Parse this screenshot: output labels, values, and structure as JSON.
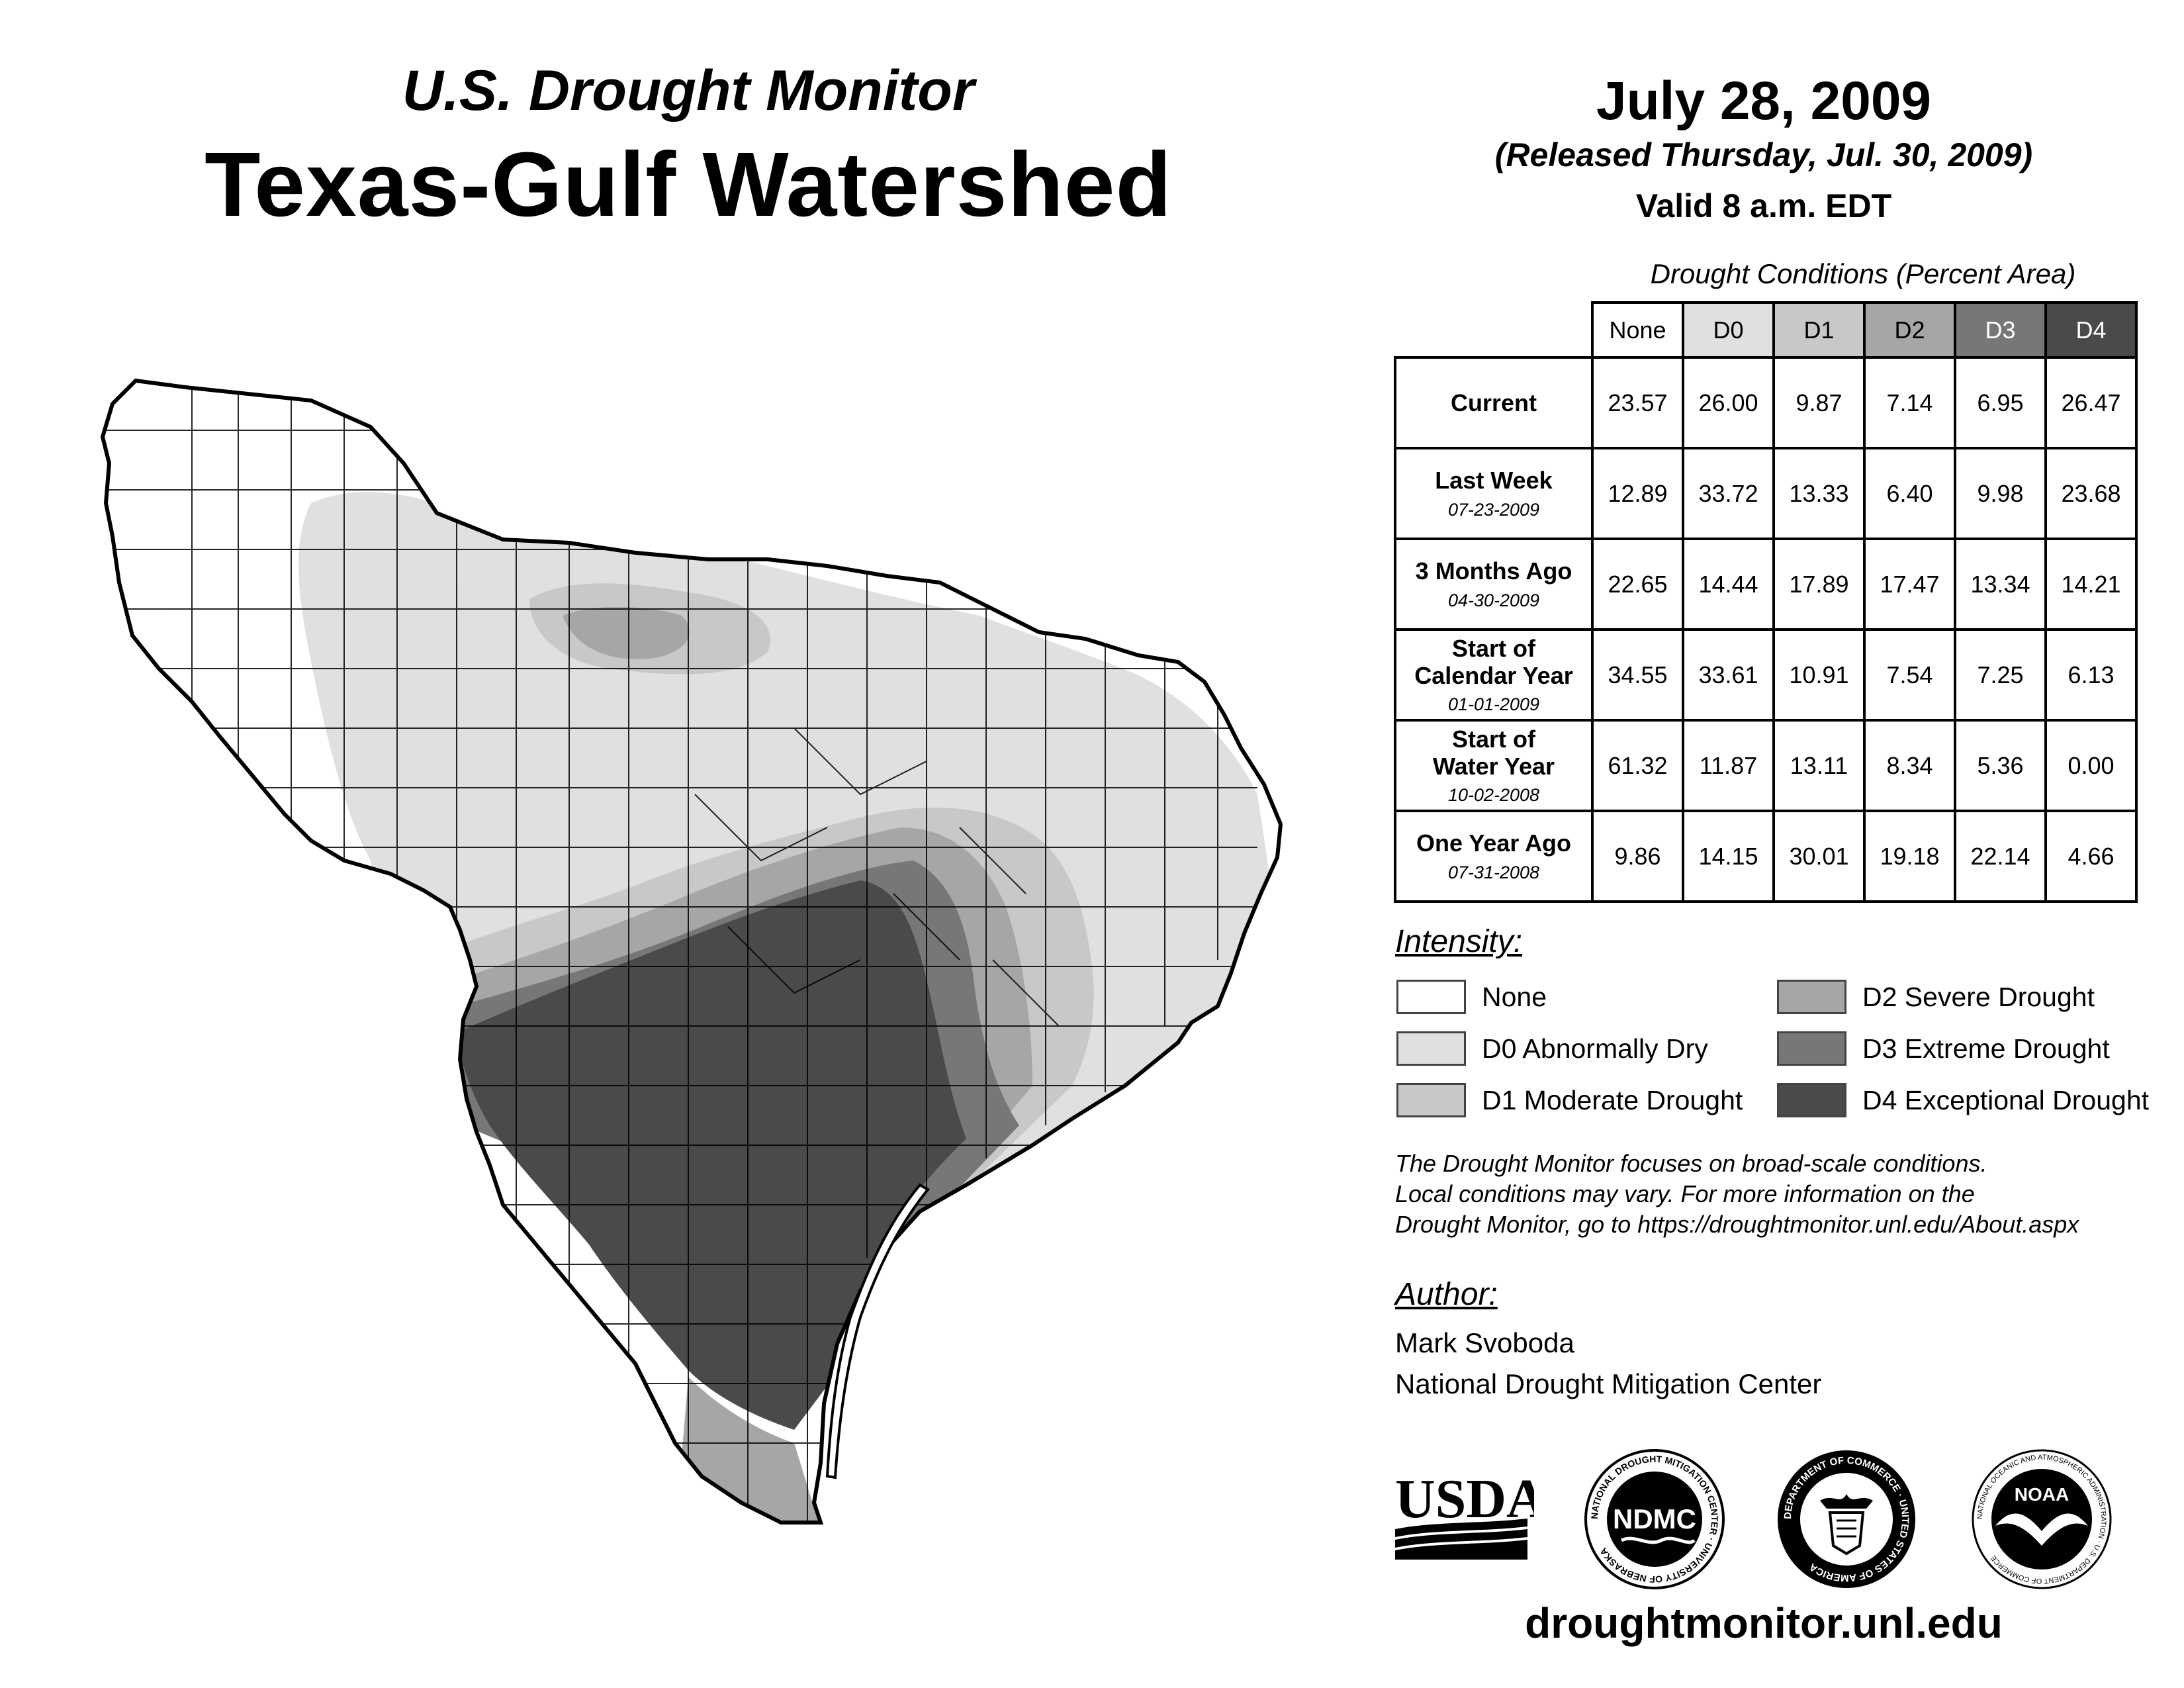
{
  "header": {
    "subtitle": "U.S. Drought Monitor",
    "title": "Texas-Gulf Watershed",
    "date": "July 28, 2009",
    "released": "(Released Thursday, Jul. 30, 2009)",
    "valid": "Valid 8 a.m. EDT"
  },
  "table": {
    "title": "Drought Conditions (Percent Area)",
    "columns": [
      "None",
      "D0",
      "D1",
      "D2",
      "D3",
      "D4"
    ],
    "column_colors": [
      "#ffffff",
      "#e0e0e0",
      "#c8c8c8",
      "#a6a6a6",
      "#777777",
      "#4a4a4a"
    ],
    "rows": [
      {
        "label": "Current",
        "date": "",
        "values": [
          "23.57",
          "26.00",
          "9.87",
          "7.14",
          "6.95",
          "26.47"
        ]
      },
      {
        "label": "Last Week",
        "date": "07-23-2009",
        "values": [
          "12.89",
          "33.72",
          "13.33",
          "6.40",
          "9.98",
          "23.68"
        ]
      },
      {
        "label": "3 Months Ago",
        "date": "04-30-2009",
        "values": [
          "22.65",
          "14.44",
          "17.89",
          "17.47",
          "13.34",
          "14.21"
        ]
      },
      {
        "label": "Start of Calendar Year",
        "date": "01-01-2009",
        "values": [
          "34.55",
          "33.61",
          "10.91",
          "7.54",
          "7.25",
          "6.13"
        ]
      },
      {
        "label": "Start of Water Year",
        "date": "10-02-2008",
        "values": [
          "61.32",
          "11.87",
          "13.11",
          "8.34",
          "5.36",
          "0.00"
        ]
      },
      {
        "label": "One Year Ago",
        "date": "07-31-2008",
        "values": [
          "9.86",
          "14.15",
          "30.01",
          "19.18",
          "22.14",
          "4.66"
        ]
      }
    ]
  },
  "legend": {
    "title": "Intensity:",
    "items": [
      {
        "label": "None",
        "color": "#ffffff"
      },
      {
        "label": "D0 Abnormally Dry",
        "color": "#e0e0e0"
      },
      {
        "label": "D1 Moderate Drought",
        "color": "#c8c8c8"
      },
      {
        "label": "D2 Severe Drought",
        "color": "#a6a6a6"
      },
      {
        "label": "D3 Extreme Drought",
        "color": "#777777"
      },
      {
        "label": "D4 Exceptional Drought",
        "color": "#4a4a4a"
      }
    ]
  },
  "note": [
    "The Drought Monitor focuses on broad-scale conditions.",
    "Local conditions may vary. For more information on the",
    "Drought Monitor, go to https://droughtmonitor.unl.edu/About.aspx"
  ],
  "author": {
    "heading": "Author:",
    "name": "Mark Svoboda",
    "org": "National Drought Mitigation Center"
  },
  "logos": {
    "usda": "USDA",
    "ndmc": "NDMC",
    "ndmc_ring": "NATIONAL DROUGHT MITIGATION CENTER · UNIVERSITY OF NEBRASKA",
    "doc_ring": "DEPARTMENT OF COMMERCE · UNITED STATES OF AMERICA",
    "noaa": "NOAA",
    "noaa_ring": "NATIONAL OCEANIC AND ATMOSPHERIC ADMINISTRATION · U.S. DEPARTMENT OF COMMERCE"
  },
  "url": "droughtmonitor.unl.edu"
}
